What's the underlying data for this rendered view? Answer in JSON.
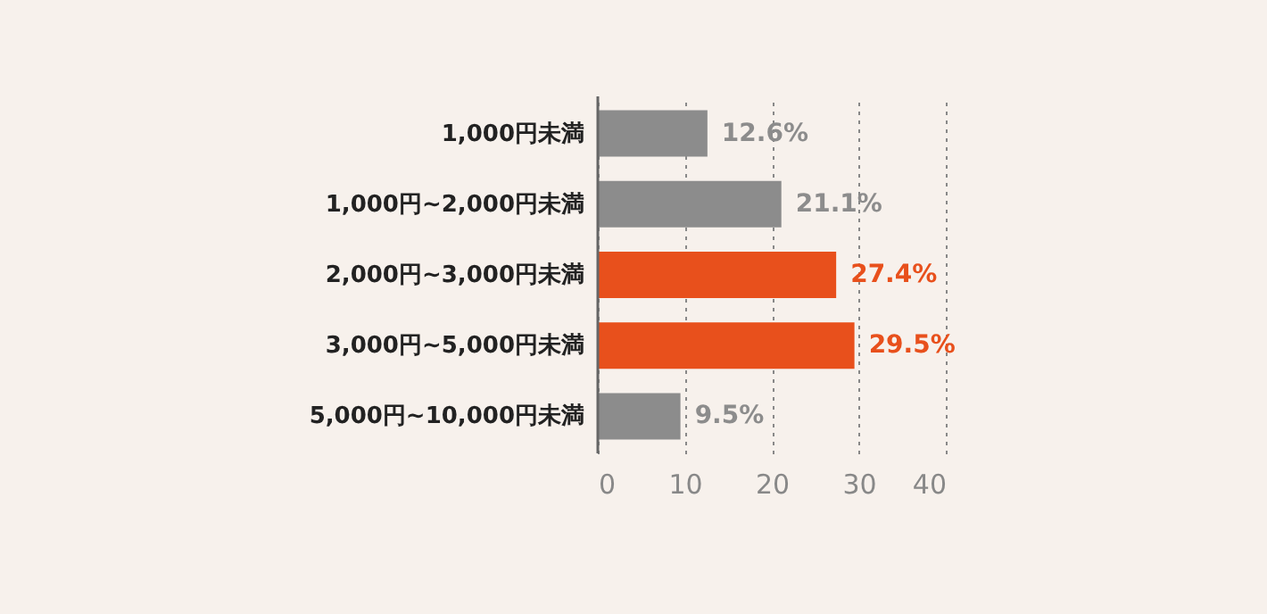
{
  "chart_data": {
    "type": "bar",
    "orientation": "horizontal",
    "categories": [
      "1,000円未満",
      "1,000円~2,000円未満",
      "2,000円~3,000円未満",
      "3,000円~5,000円未満",
      "5,000円~10,000円未満"
    ],
    "values": [
      12.6,
      21.1,
      27.4,
      29.5,
      9.5
    ],
    "colors": [
      "#8c8c8c",
      "#8c8c8c",
      "#e8501c",
      "#e8501c",
      "#8c8c8c"
    ],
    "value_labels": [
      "12.6%",
      "21.1%",
      "27.4%",
      "29.5%",
      "9.5%"
    ],
    "xlim": [
      0,
      40
    ],
    "xticks": [
      0,
      10,
      20,
      30,
      40
    ],
    "grid": "x"
  }
}
